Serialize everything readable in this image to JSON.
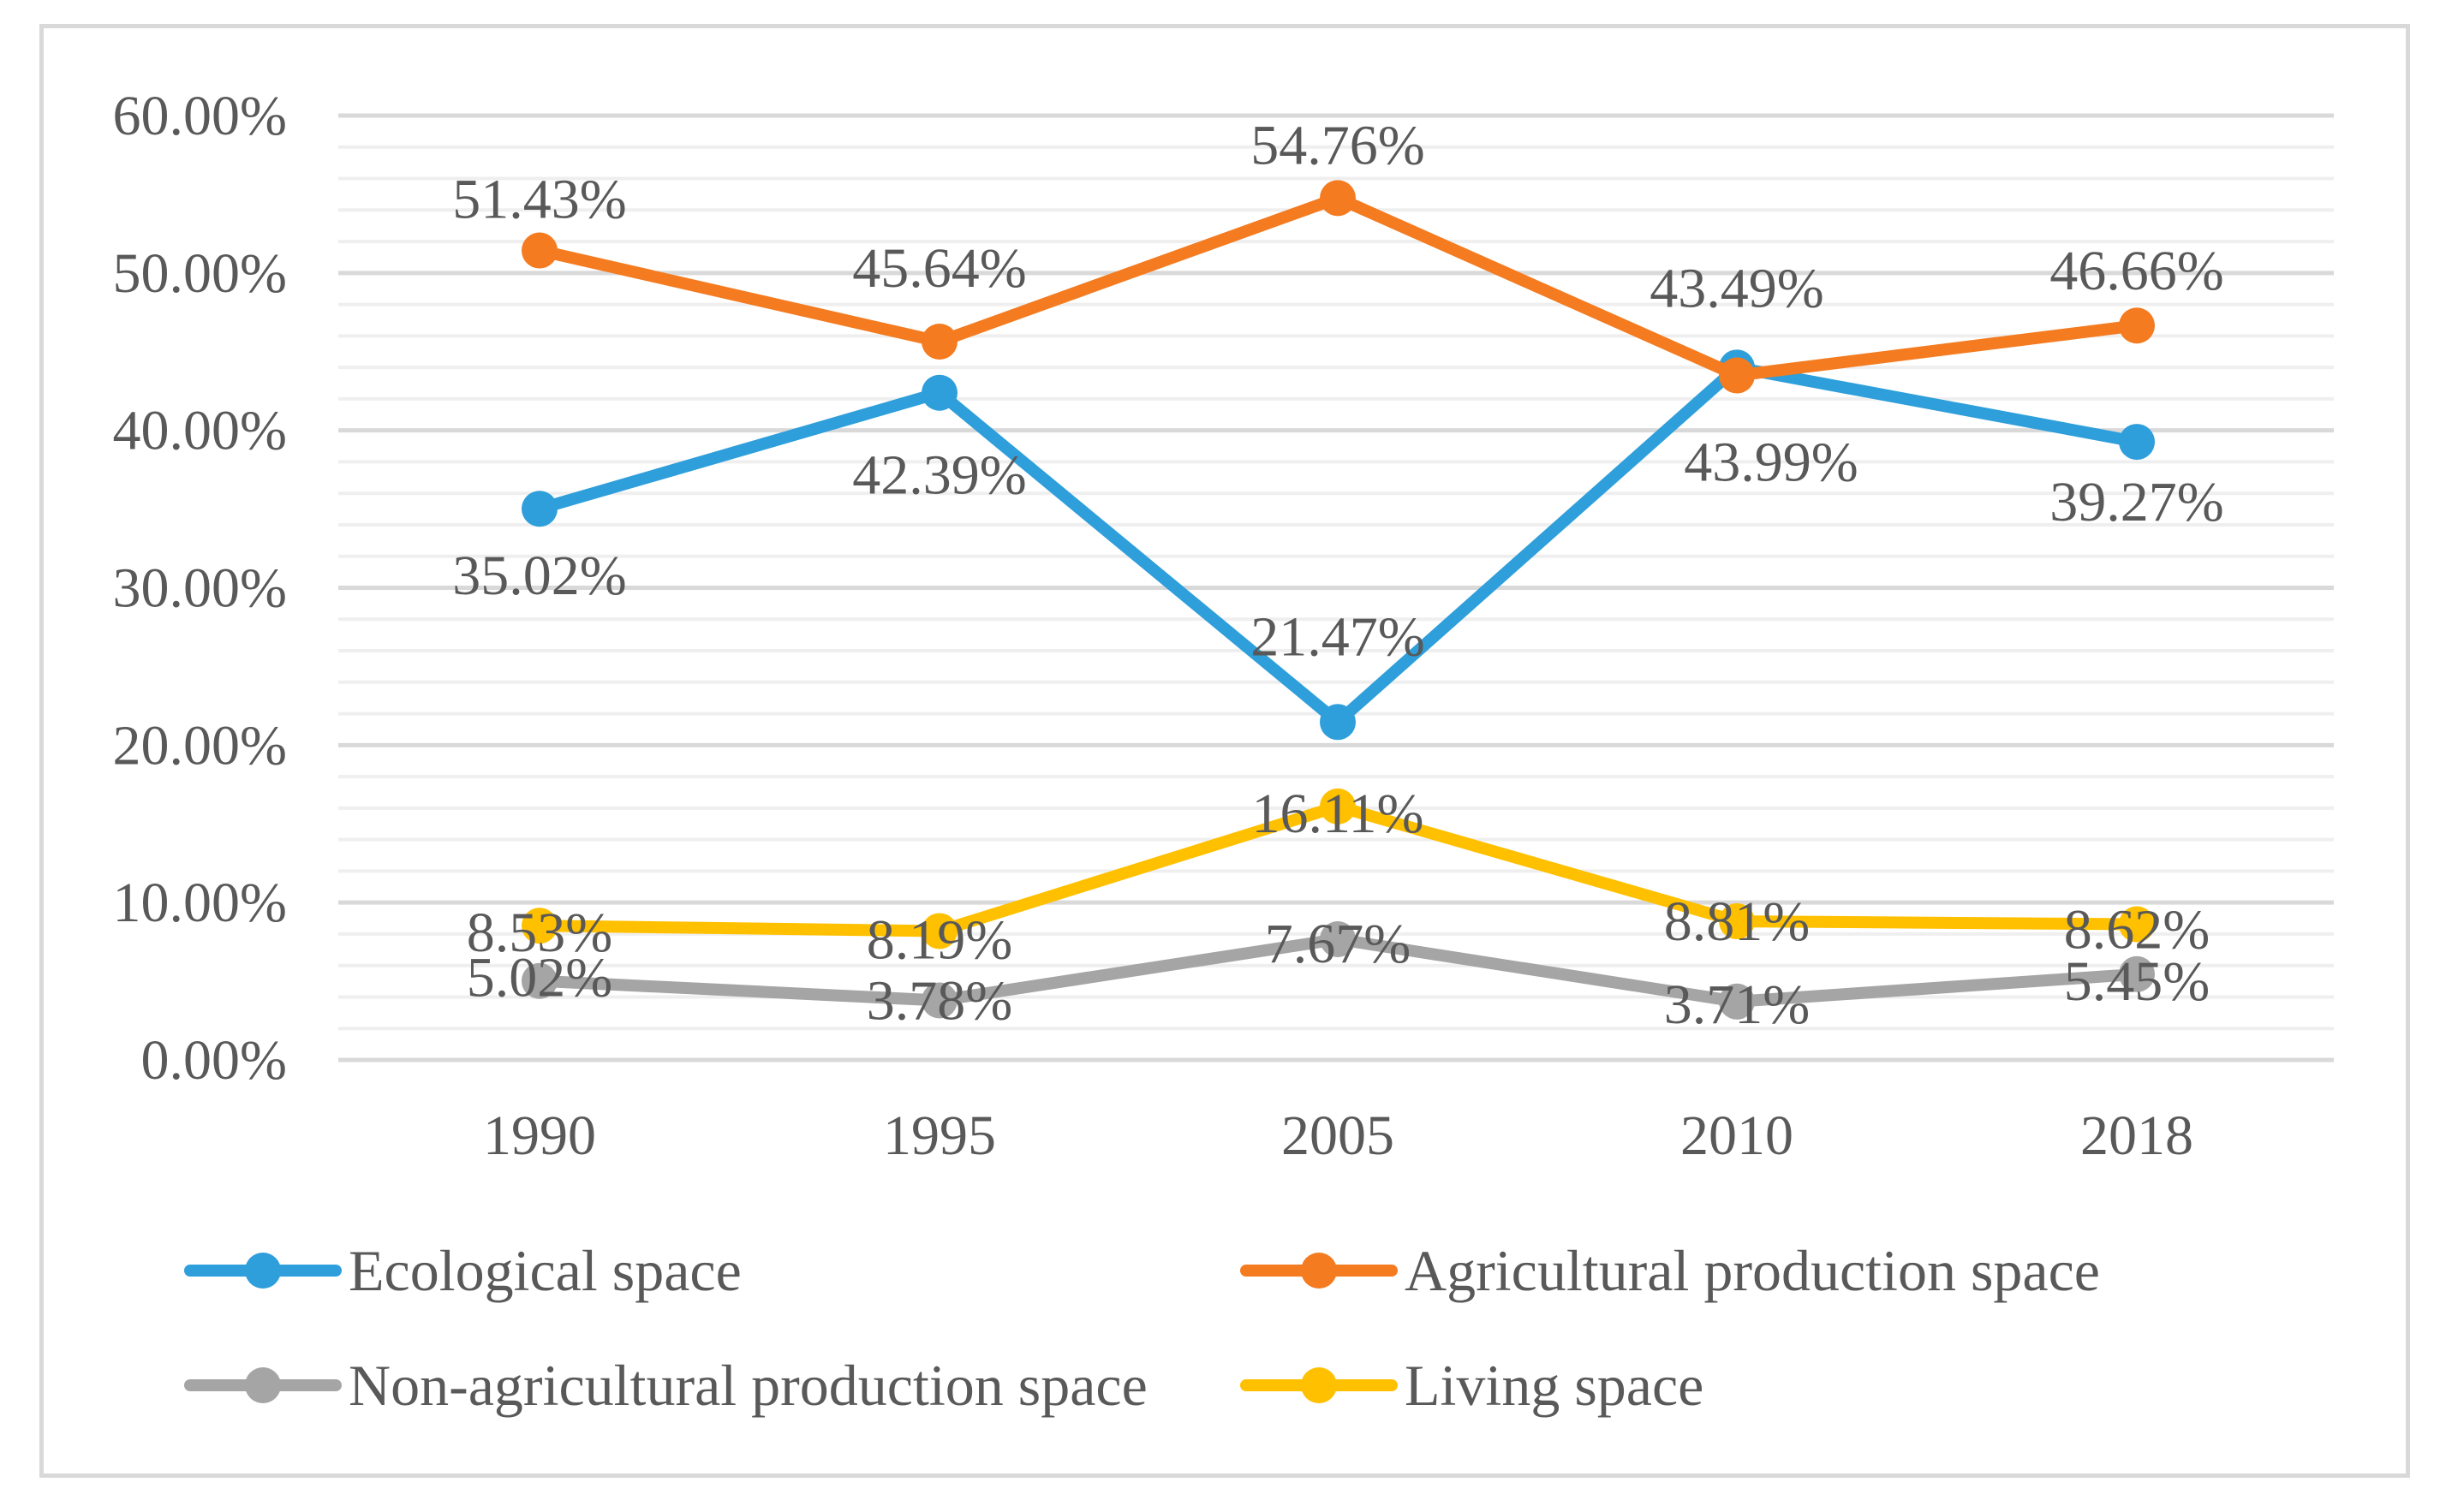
{
  "chart_data": {
    "type": "line",
    "title": "",
    "xlabel": "",
    "ylabel": "",
    "categories": [
      "1990",
      "1995",
      "2005",
      "2010",
      "2018"
    ],
    "ylim": [
      0,
      60
    ],
    "y_ticks": [
      "0.00%",
      "10.00%",
      "20.00%",
      "30.00%",
      "40.00%",
      "50.00%",
      "60.00%"
    ],
    "grid": true,
    "legend_position": "bottom",
    "series": [
      {
        "name": "Ecological space",
        "color": "#2e9fdb",
        "values": [
          35.02,
          42.39,
          21.47,
          43.99,
          39.27
        ],
        "labels": [
          "35.02%",
          "42.39%",
          "21.47%",
          "43.99%",
          "39.27%"
        ]
      },
      {
        "name": "Agricultural production space",
        "color": "#f47b20",
        "values": [
          51.43,
          45.64,
          54.76,
          43.49,
          46.66
        ],
        "labels": [
          "51.43%",
          "45.64%",
          "54.76%",
          "43.49%",
          "46.66%"
        ]
      },
      {
        "name": "Non-agricultural production space",
        "color": "#a5a5a5",
        "values": [
          5.02,
          3.78,
          7.67,
          3.71,
          5.45
        ],
        "labels": [
          "5.02%",
          "3.78%",
          "7.67%",
          "3.71%",
          "5.45%"
        ]
      },
      {
        "name": "Living space",
        "color": "#ffc000",
        "values": [
          8.53,
          8.19,
          16.11,
          8.81,
          8.62
        ],
        "labels": [
          "8.53%",
          "8.19%",
          "16.11%",
          "8.81%",
          "8.62%"
        ]
      }
    ]
  }
}
